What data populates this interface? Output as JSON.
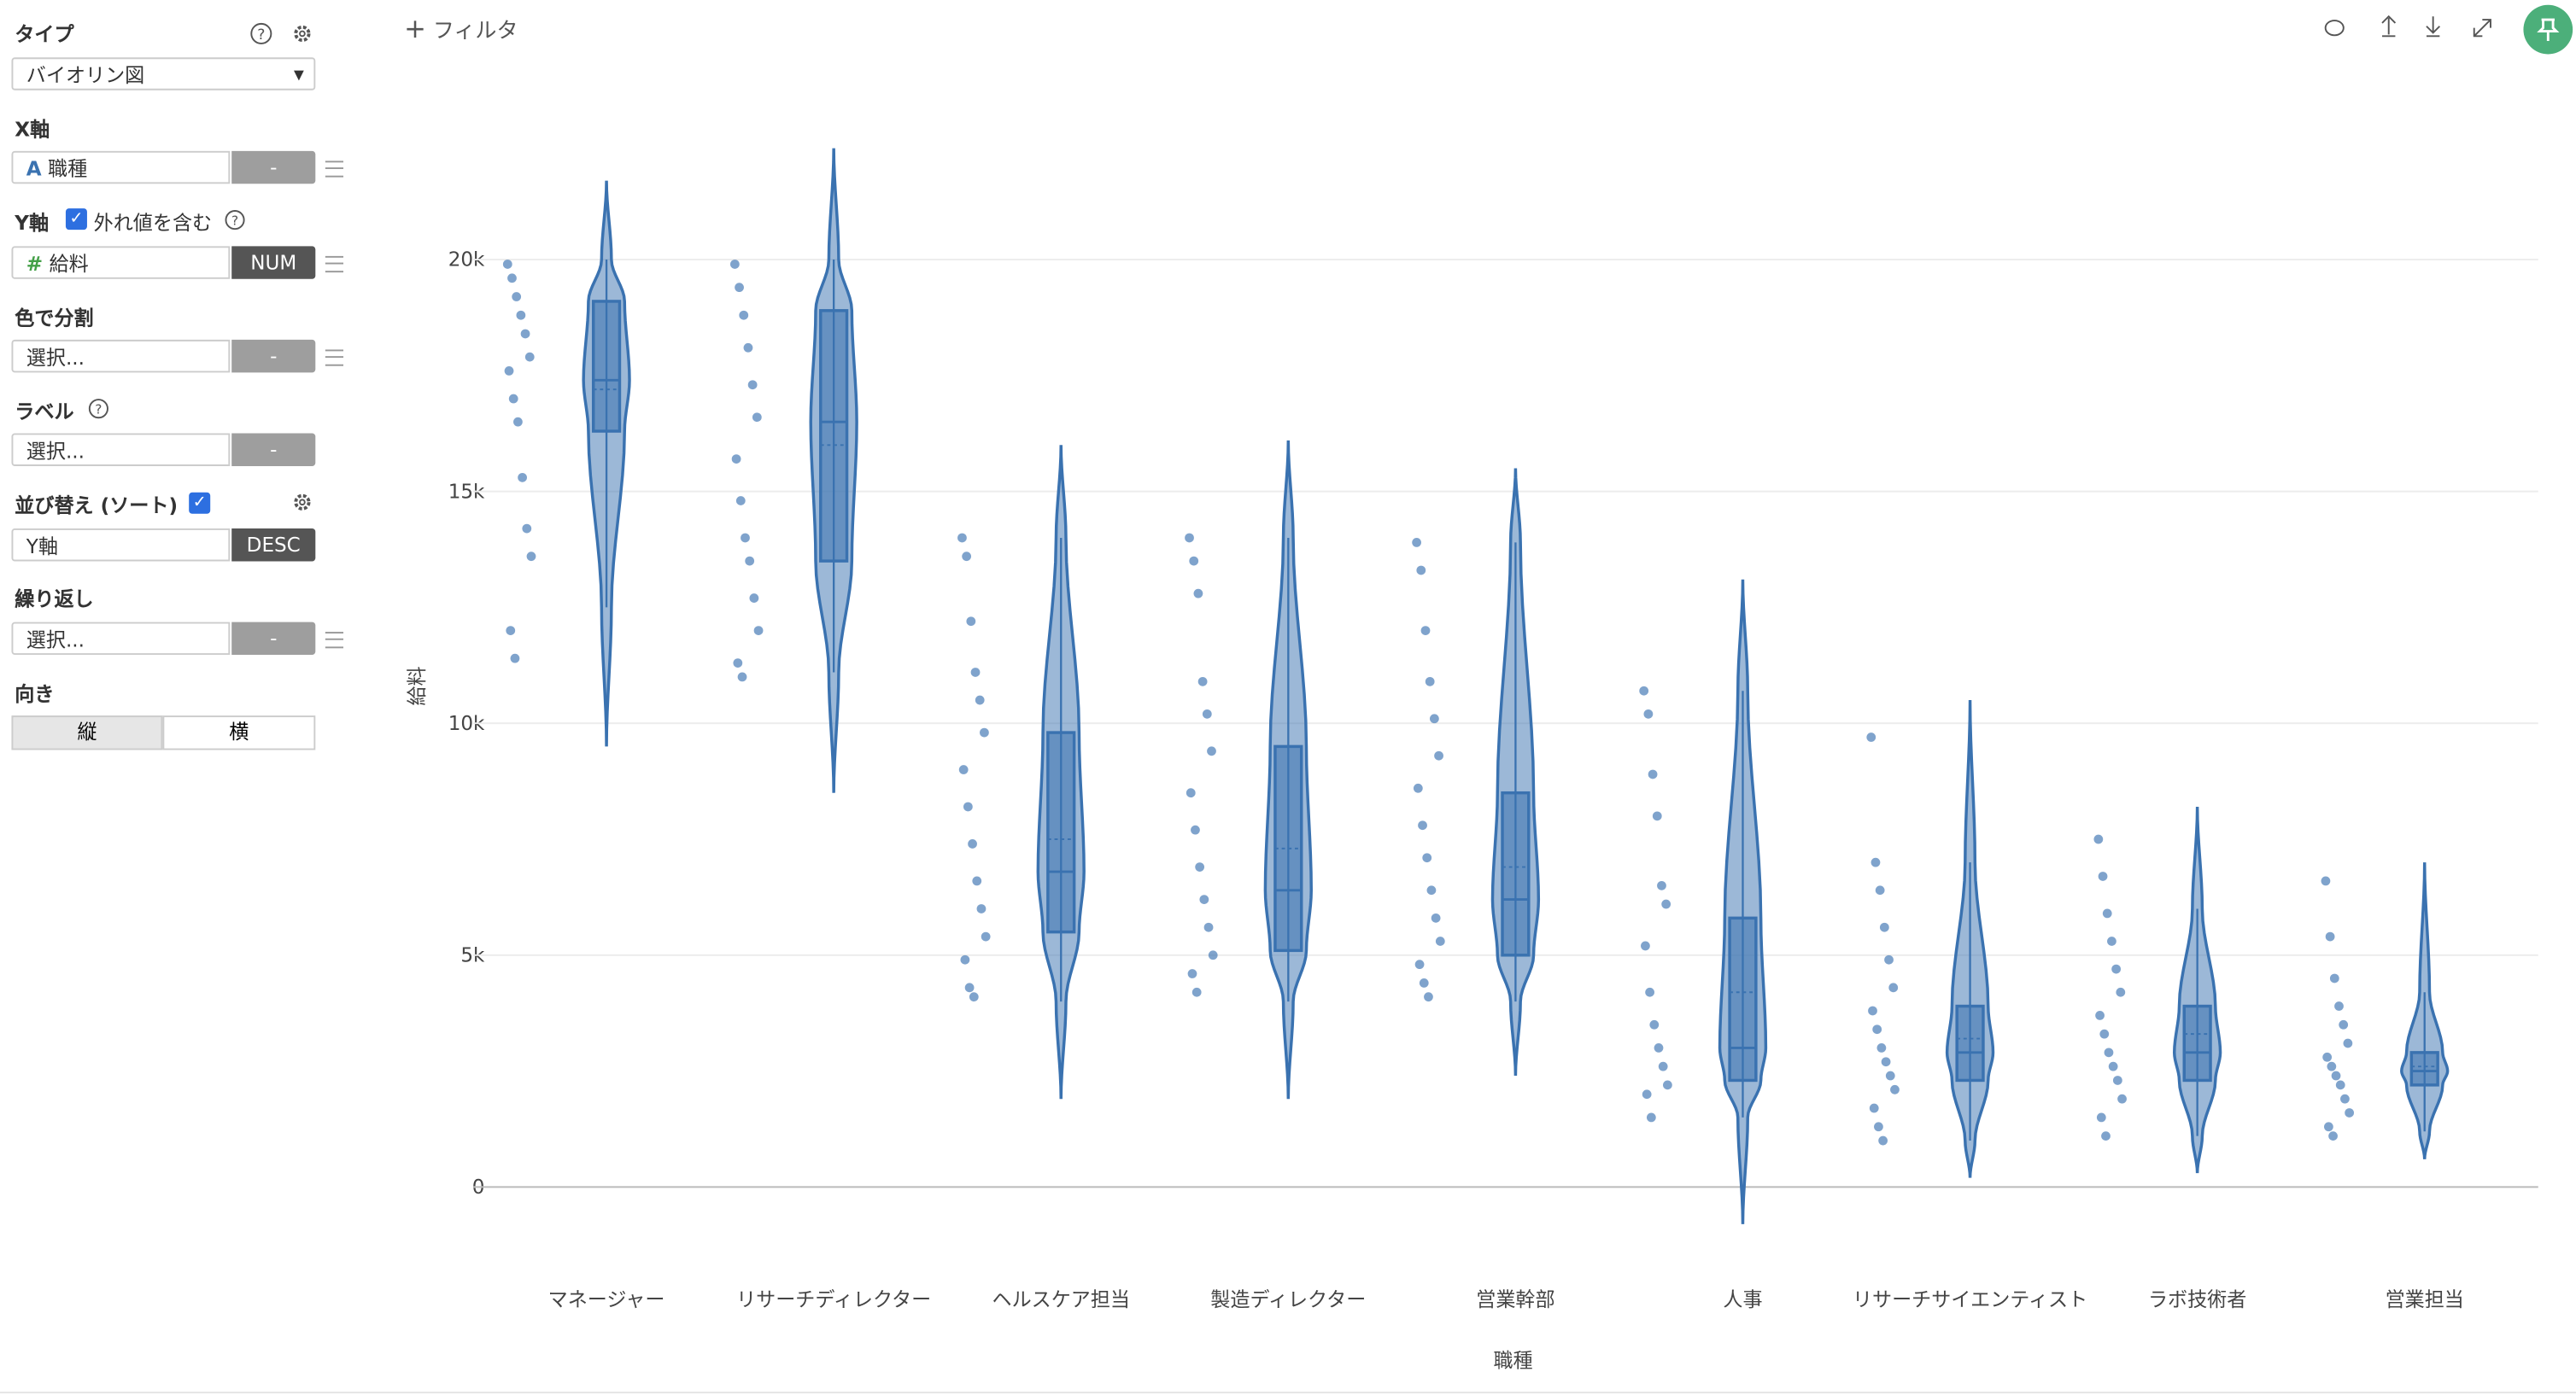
{
  "sidebar": {
    "type_label": "タイプ",
    "type_value": "バイオリン図",
    "x_label": "X軸",
    "x_field": "職種",
    "x_button": "-",
    "y_label": "Y軸",
    "y_outliers": "外れ値を含む",
    "y_field": "給料",
    "y_button": "NUM",
    "color_label": "色で分割",
    "color_value": "選択...",
    "color_button": "-",
    "label_label": "ラベル",
    "label_value": "選択...",
    "label_button": "-",
    "sort_label": "並び替え (ソート)",
    "sort_value": "Y軸",
    "sort_button": "DESC",
    "repeat_label": "繰り返し",
    "repeat_value": "選択...",
    "repeat_button": "-",
    "orient_label": "向き",
    "orient_vertical": "縦",
    "orient_horizontal": "横"
  },
  "toolbar": {
    "filter": "フィルタ"
  },
  "chart_data": {
    "type": "violin",
    "x_label": "職種",
    "y_label": "給料",
    "color": "#3a72b0",
    "grid": true,
    "ylim": [
      -1300,
      24200
    ],
    "yticks": [
      0,
      {
        "value": 5000,
        "label": "5k"
      },
      {
        "value": 10000,
        "label": "10k"
      },
      {
        "value": 15000,
        "label": "15k"
      },
      {
        "value": 20000,
        "label": "20k"
      }
    ],
    "categories": [
      "マネージャー",
      "リサーチディレクター",
      "ヘルスケア担当",
      "製造ディレクター",
      "営業幹部",
      "人事",
      "リサーチサイエンティスト",
      "ラボ技術者",
      "営業担当"
    ],
    "groups": [
      {
        "violin_min": 9500,
        "violin_max": 21700,
        "whisker_low": 12500,
        "q1": 16300,
        "median": 17400,
        "mean": 17200,
        "q3": 19100,
        "whisker_high": 20000,
        "points": [
          19900,
          19600,
          19200,
          18800,
          18400,
          17900,
          17600,
          17000,
          16500,
          15300,
          14200,
          13600,
          12000,
          11400
        ]
      },
      {
        "violin_min": 8500,
        "violin_max": 22400,
        "whisker_low": 11100,
        "q1": 13500,
        "median": 16500,
        "mean": 16000,
        "q3": 18900,
        "whisker_high": 20000,
        "points": [
          19900,
          19400,
          18800,
          18100,
          17300,
          16600,
          15700,
          14800,
          14000,
          13500,
          12700,
          12000,
          11300,
          11000
        ]
      },
      {
        "violin_min": 1900,
        "violin_max": 16000,
        "whisker_low": 4000,
        "q1": 5500,
        "median": 6800,
        "mean": 7500,
        "q3": 9800,
        "whisker_high": 14000,
        "points": [
          14000,
          13600,
          12200,
          11100,
          10500,
          9800,
          9000,
          8200,
          7400,
          6600,
          6000,
          5400,
          4900,
          4300,
          4100
        ]
      },
      {
        "violin_min": 1900,
        "violin_max": 16100,
        "whisker_low": 4000,
        "q1": 5100,
        "median": 6400,
        "mean": 7300,
        "q3": 9500,
        "whisker_high": 14000,
        "points": [
          14000,
          13500,
          12800,
          10900,
          10200,
          9400,
          8500,
          7700,
          6900,
          6200,
          5600,
          5000,
          4600,
          4200
        ]
      },
      {
        "violin_min": 2400,
        "violin_max": 15500,
        "whisker_low": 4000,
        "q1": 5000,
        "median": 6200,
        "mean": 6900,
        "q3": 8500,
        "whisker_high": 13900,
        "points": [
          13900,
          13300,
          12000,
          10900,
          10100,
          9300,
          8600,
          7800,
          7100,
          6400,
          5800,
          5300,
          4800,
          4400,
          4100
        ]
      },
      {
        "violin_min": -800,
        "violin_max": 13100,
        "whisker_low": 1500,
        "q1": 2300,
        "median": 3000,
        "mean": 4200,
        "q3": 5800,
        "whisker_high": 10700,
        "points": [
          10700,
          10200,
          8900,
          8000,
          6500,
          6100,
          5200,
          4200,
          3500,
          3000,
          2600,
          2200,
          2000,
          1500
        ]
      },
      {
        "violin_min": 200,
        "violin_max": 10500,
        "whisker_low": 1000,
        "q1": 2300,
        "median": 2900,
        "mean": 3200,
        "q3": 3900,
        "whisker_high": 7000,
        "points": [
          9700,
          7000,
          6400,
          5600,
          4900,
          4300,
          3800,
          3400,
          3000,
          2700,
          2400,
          2100,
          1700,
          1300,
          1000
        ]
      },
      {
        "violin_min": 300,
        "violin_max": 8200,
        "whisker_low": 1100,
        "q1": 2300,
        "median": 2900,
        "mean": 3300,
        "q3": 3900,
        "whisker_high": 6000,
        "points": [
          7500,
          6700,
          5900,
          5300,
          4700,
          4200,
          3700,
          3300,
          2900,
          2600,
          2300,
          1900,
          1500,
          1100
        ]
      },
      {
        "violin_min": 600,
        "violin_max": 7000,
        "whisker_low": 1200,
        "q1": 2200,
        "median": 2500,
        "mean": 2600,
        "q3": 2900,
        "whisker_high": 4200,
        "points": [
          6600,
          5400,
          4500,
          3900,
          3500,
          3100,
          2800,
          2600,
          2400,
          2200,
          1900,
          1600,
          1300,
          1100
        ]
      }
    ]
  }
}
